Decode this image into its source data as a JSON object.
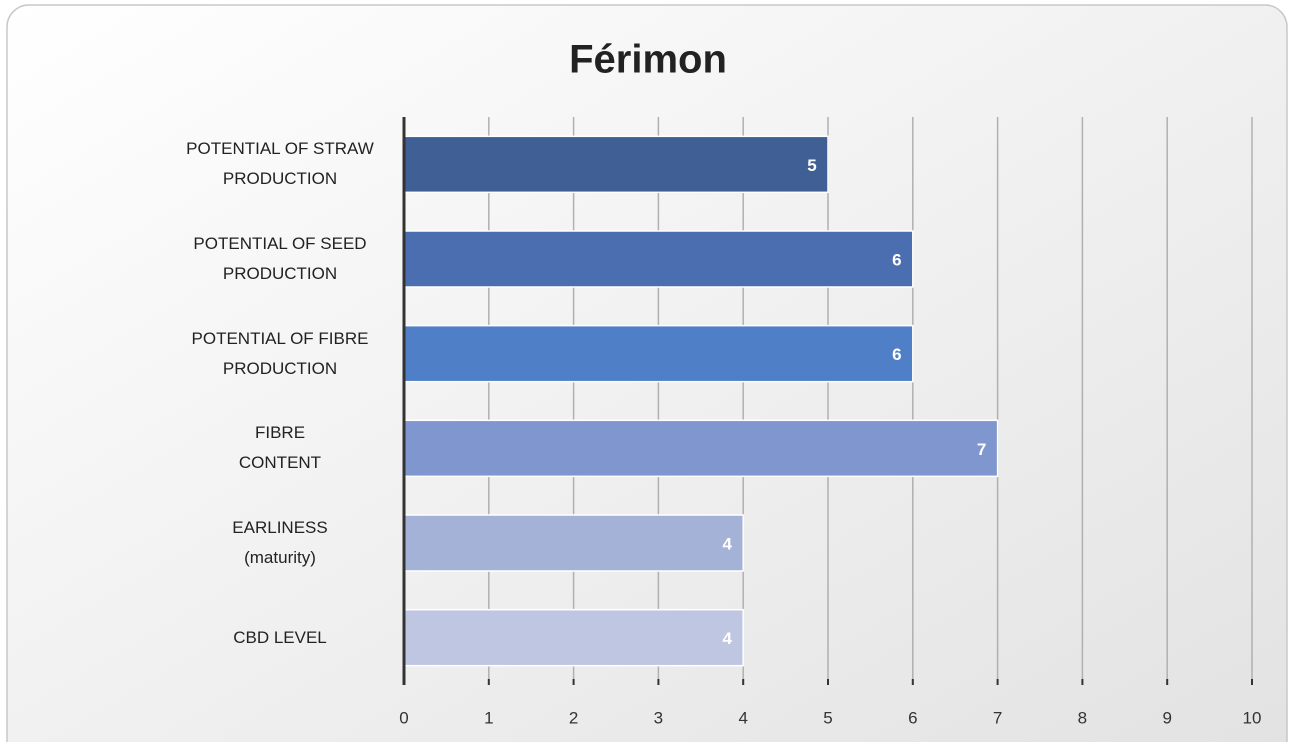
{
  "chart_data": {
    "type": "bar",
    "orientation": "horizontal",
    "title": "Férimon",
    "categories": [
      "POTENTIAL OF STRAW\nPRODUCTION",
      "POTENTIAL OF SEED\nPRODUCTION",
      "POTENTIAL OF FIBRE\nPRODUCTION",
      "FIBRE\nCONTENT",
      "EARLINESS\n(maturity)",
      "CBD LEVEL"
    ],
    "values": [
      5,
      6,
      6,
      7,
      4,
      4
    ],
    "colors": [
      "#3f5f95",
      "#4b6eb1",
      "#4f7fc6",
      "#7f96cf",
      "#a4b2d8",
      "#bfc6e2"
    ],
    "xlim": [
      0,
      10
    ],
    "xticks": [
      0,
      1,
      2,
      3,
      4,
      5,
      6,
      7,
      8,
      9,
      10
    ],
    "grid": true
  }
}
